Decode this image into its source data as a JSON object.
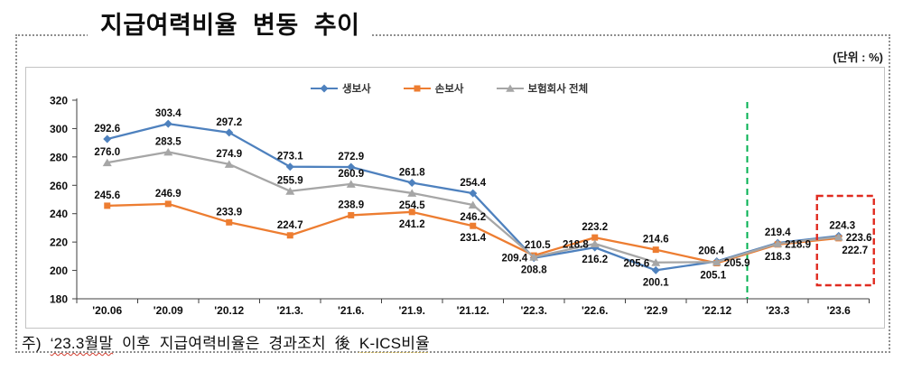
{
  "page": {
    "title": "지급여력비율 변동 추이",
    "unit_label": "(단위 : %)"
  },
  "note": {
    "prefix": "주) ",
    "highlight": "‘23.3월말",
    "middle": " 이후 지급여력비율은 경과조치 後 ",
    "kics": "K-ICS비율"
  },
  "chart_data": {
    "type": "line",
    "title": "지급여력비율 변동 추이",
    "unit": "%",
    "xlabel": "",
    "ylabel": "",
    "ylim": [
      180,
      320
    ],
    "ytick_step": 20,
    "grid": false,
    "legend_position": "top-center",
    "categories": [
      "'20.06",
      "'20.09",
      "'20.12",
      "'21.3.",
      "'21.6.",
      "'21.9.",
      "'21.12.",
      "'22.3.",
      "'22.6.",
      "'22.9",
      "'22.12",
      "'23.3",
      "'23.6"
    ],
    "series": [
      {
        "name": "생보사",
        "color": "#4e81be",
        "marker": "diamond",
        "values": [
          292.6,
          303.4,
          297.2,
          273.1,
          272.9,
          261.8,
          254.4,
          208.8,
          216.2,
          200.1,
          206.4,
          219.4,
          224.3
        ],
        "label_pos": [
          "above",
          "above",
          "above",
          "above",
          "above",
          "above",
          "above",
          "below",
          "below",
          "below",
          "above",
          "above",
          "above"
        ],
        "label_dx": [
          0,
          0,
          0,
          0,
          0,
          0,
          0,
          0,
          0,
          0,
          -6,
          0,
          4
        ]
      },
      {
        "name": "손보사",
        "color": "#ed7d31",
        "marker": "square",
        "values": [
          245.6,
          246.9,
          233.9,
          224.7,
          238.9,
          241.2,
          231.4,
          210.5,
          223.2,
          214.6,
          205.1,
          218.3,
          222.7
        ],
        "label_pos": [
          "above",
          "above",
          "above",
          "above",
          "above",
          "below",
          "below",
          "above",
          "above",
          "above",
          "below",
          "below",
          "below"
        ],
        "label_dx": [
          0,
          0,
          0,
          0,
          0,
          0,
          0,
          4,
          0,
          0,
          -4,
          0,
          18
        ]
      },
      {
        "name": "보험회사 전체",
        "color": "#a6a6a6",
        "marker": "triangle",
        "values": [
          276.0,
          283.5,
          274.9,
          255.9,
          260.9,
          254.5,
          246.2,
          209.4,
          218.8,
          205.6,
          205.9,
          218.9,
          223.6
        ],
        "label_pos": [
          "above",
          "above",
          "above",
          "above",
          "above",
          "below",
          "below",
          "left",
          "left",
          "left",
          "right",
          "right",
          "right"
        ],
        "label_dx": [
          0,
          0,
          0,
          0,
          0,
          0,
          0,
          0,
          0,
          0,
          0,
          0,
          0
        ]
      }
    ],
    "annotations": {
      "green_dashed_line": {
        "between": [
          "'22.12",
          "'23.3"
        ],
        "color": "#00b050"
      },
      "red_dashed_box": {
        "category": "'23.6",
        "color": "#e02b20"
      }
    }
  }
}
